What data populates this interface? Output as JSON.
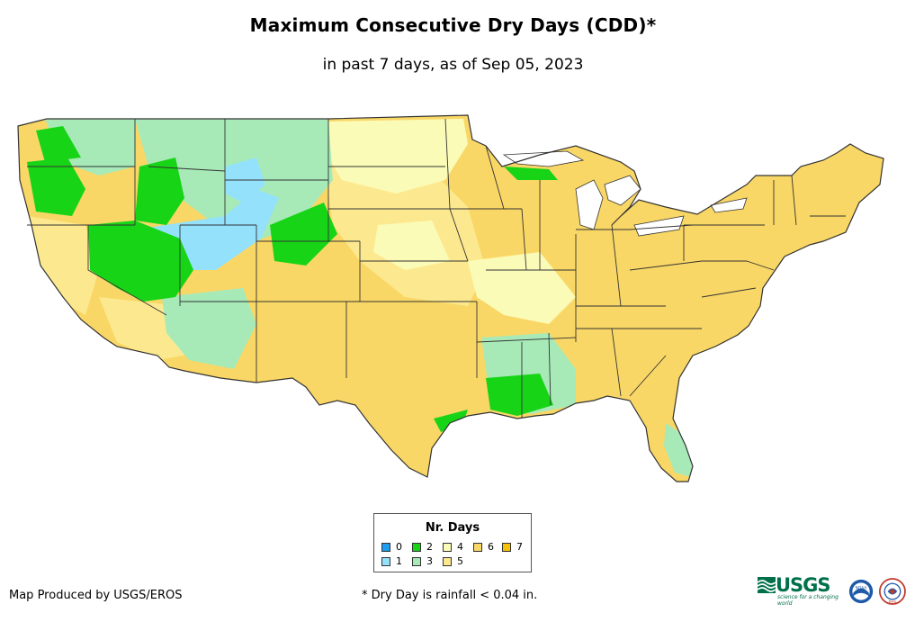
{
  "header": {
    "title": "Maximum Consecutive Dry Days (CDD)*",
    "subtitle": "in past 7 days, as of Sep 05, 2023"
  },
  "legend": {
    "title": "Nr. Days",
    "items": [
      {
        "label": "0",
        "color": "#1f9bf0"
      },
      {
        "label": "1",
        "color": "#93e1fb"
      },
      {
        "label": "2",
        "color": "#17d416"
      },
      {
        "label": "3",
        "color": "#a7eab8"
      },
      {
        "label": "4",
        "color": "#fbfbb8"
      },
      {
        "label": "5",
        "color": "#fce98f"
      },
      {
        "label": "6",
        "color": "#f9d766"
      },
      {
        "label": "7",
        "color": "#f6c100"
      }
    ]
  },
  "footer": {
    "credit": "Map Produced by USGS/EROS",
    "note": "* Dry Day is rainfall < 0.04 in."
  },
  "logos": {
    "usgs_text": "USGS",
    "usgs_tagline": "science for a changing world",
    "noaa_text": "NOAA",
    "nws_text": "NWS"
  },
  "colors": {
    "state_border": "#333333"
  }
}
